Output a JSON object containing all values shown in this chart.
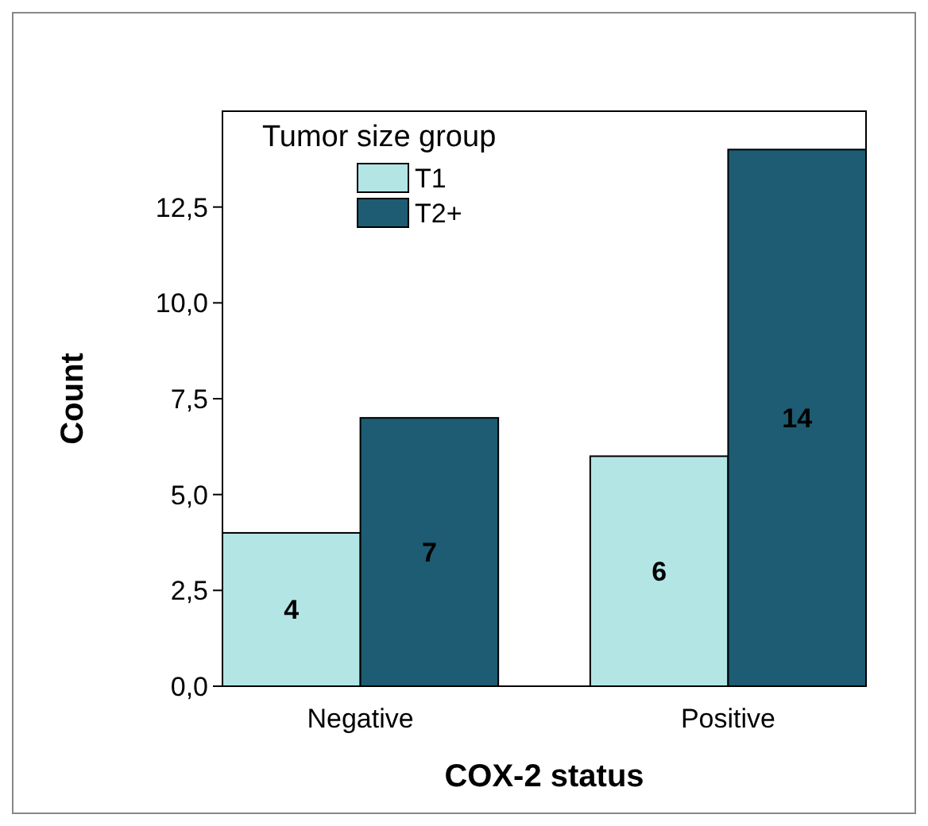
{
  "chart_data": {
    "type": "bar",
    "xlabel": "COX-2 status",
    "ylabel": "Count",
    "legend_title": "Tumor size group",
    "categories": [
      "Negative",
      "Positive"
    ],
    "series": [
      {
        "name": "T1",
        "color": "#b3e5e5",
        "values": [
          4,
          6
        ]
      },
      {
        "name": "T2+",
        "color": "#1d5c72",
        "values": [
          7,
          14
        ]
      }
    ],
    "ylim": [
      0,
      15
    ],
    "yticks": [
      {
        "value": 0,
        "label": "0,0"
      },
      {
        "value": 2.5,
        "label": "2,5"
      },
      {
        "value": 5,
        "label": "5,0"
      },
      {
        "value": 7.5,
        "label": "7,5"
      },
      {
        "value": 10,
        "label": "10,0"
      },
      {
        "value": 12.5,
        "label": "12,5"
      }
    ],
    "data_labels": true,
    "legend": "top left",
    "grid": false
  }
}
